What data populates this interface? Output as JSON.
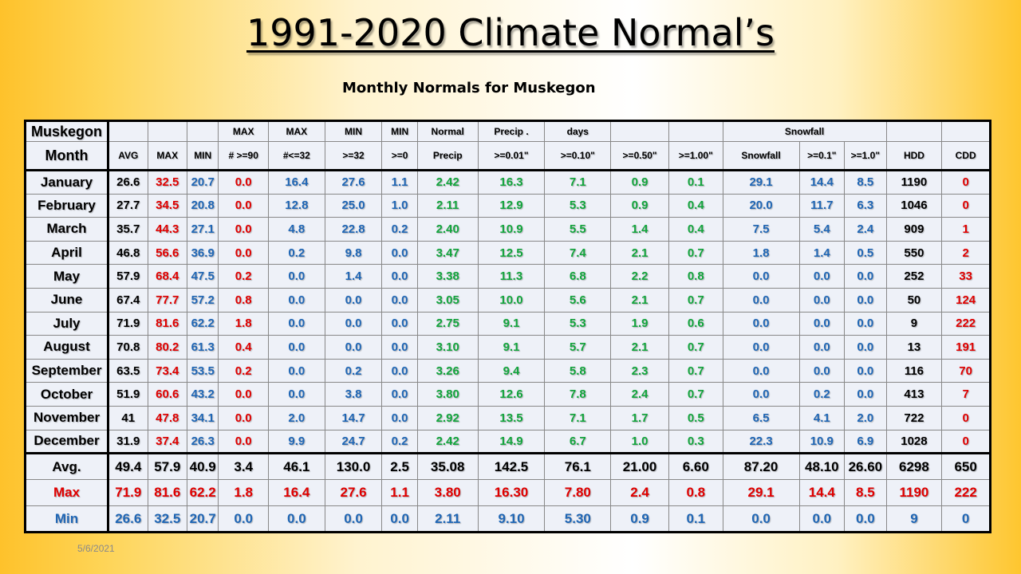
{
  "title": "1991-2020 Climate Normal’s",
  "subtitle": "Monthly Normals for Muskegon",
  "date": "5/6/2021",
  "colors": {
    "black": "#000000",
    "red": "#e00000",
    "blue": "#1f66b5",
    "green": "#13a53d"
  },
  "table": {
    "header1": [
      "Muskegon",
      "",
      "",
      "",
      "MAX",
      "MAX",
      "MIN",
      "MIN",
      "Normal",
      "Precip .",
      "days",
      "",
      "",
      "Snowfall",
      "",
      ""
    ],
    "header2": [
      "Month",
      "AVG",
      "MAX",
      "MIN",
      "# >=90",
      "#<=32",
      ">=32",
      ">=0",
      "Precip",
      ">=0.01\"",
      ">=0.10\"",
      ">=0.50\"",
      ">=1.00\"",
      "Snowfall",
      ">=0.1\"",
      ">=1.0\"",
      "HDD",
      "CDD"
    ],
    "rows": [
      [
        "January",
        "26.6",
        "32.5",
        "20.7",
        "0.0",
        "16.4",
        "27.6",
        "1.1",
        "2.42",
        "16.3",
        "7.1",
        "0.9",
        "0.1",
        "29.1",
        "14.4",
        "8.5",
        "1190",
        "0"
      ],
      [
        "February",
        "27.7",
        "34.5",
        "20.8",
        "0.0",
        "12.8",
        "25.0",
        "1.0",
        "2.11",
        "12.9",
        "5.3",
        "0.9",
        "0.4",
        "20.0",
        "11.7",
        "6.3",
        "1046",
        "0"
      ],
      [
        "March",
        "35.7",
        "44.3",
        "27.1",
        "0.0",
        "4.8",
        "22.8",
        "0.2",
        "2.40",
        "10.9",
        "5.5",
        "1.4",
        "0.4",
        "7.5",
        "5.4",
        "2.4",
        "909",
        "1"
      ],
      [
        "April",
        "46.8",
        "56.6",
        "36.9",
        "0.0",
        "0.2",
        "9.8",
        "0.0",
        "3.47",
        "12.5",
        "7.4",
        "2.1",
        "0.7",
        "1.8",
        "1.4",
        "0.5",
        "550",
        "2"
      ],
      [
        "May",
        "57.9",
        "68.4",
        "47.5",
        "0.2",
        "0.0",
        "1.4",
        "0.0",
        "3.38",
        "11.3",
        "6.8",
        "2.2",
        "0.8",
        "0.0",
        "0.0",
        "0.0",
        "252",
        "33"
      ],
      [
        "June",
        "67.4",
        "77.7",
        "57.2",
        "0.8",
        "0.0",
        "0.0",
        "0.0",
        "3.05",
        "10.0",
        "5.6",
        "2.1",
        "0.7",
        "0.0",
        "0.0",
        "0.0",
        "50",
        "124"
      ],
      [
        "July",
        "71.9",
        "81.6",
        "62.2",
        "1.8",
        "0.0",
        "0.0",
        "0.0",
        "2.75",
        "9.1",
        "5.3",
        "1.9",
        "0.6",
        "0.0",
        "0.0",
        "0.0",
        "9",
        "222"
      ],
      [
        "August",
        "70.8",
        "80.2",
        "61.3",
        "0.4",
        "0.0",
        "0.0",
        "0.0",
        "3.10",
        "9.1",
        "5.7",
        "2.1",
        "0.7",
        "0.0",
        "0.0",
        "0.0",
        "13",
        "191"
      ],
      [
        "September",
        "63.5",
        "73.4",
        "53.5",
        "0.2",
        "0.0",
        "0.2",
        "0.0",
        "3.26",
        "9.4",
        "5.8",
        "2.3",
        "0.7",
        "0.0",
        "0.0",
        "0.0",
        "116",
        "70"
      ],
      [
        "October",
        "51.9",
        "60.6",
        "43.2",
        "0.0",
        "0.0",
        "3.8",
        "0.0",
        "3.80",
        "12.6",
        "7.8",
        "2.4",
        "0.7",
        "0.0",
        "0.2",
        "0.0",
        "413",
        "7"
      ],
      [
        "November",
        "41",
        "47.8",
        "34.1",
        "0.0",
        "2.0",
        "14.7",
        "0.0",
        "2.92",
        "13.5",
        "7.1",
        "1.7",
        "0.5",
        "6.5",
        "4.1",
        "2.0",
        "722",
        "0"
      ],
      [
        "December",
        "31.9",
        "37.4",
        "26.3",
        "0.0",
        "9.9",
        "24.7",
        "0.2",
        "2.42",
        "14.9",
        "6.7",
        "1.0",
        "0.3",
        "22.3",
        "10.9",
        "6.9",
        "1028",
        "0"
      ]
    ],
    "summary": [
      [
        "Avg.",
        "49.4",
        "57.9",
        "40.9",
        "3.4",
        "46.1",
        "130.0",
        "2.5",
        "35.08",
        "142.5",
        "76.1",
        "21.00",
        "6.60",
        "87.20",
        "48.10",
        "26.60",
        "6298",
        "650"
      ],
      [
        "Max",
        "71.9",
        "81.6",
        "62.2",
        "1.8",
        "16.4",
        "27.6",
        "1.1",
        "3.80",
        "16.30",
        "7.80",
        "2.4",
        "0.8",
        "29.1",
        "14.4",
        "8.5",
        "1190",
        "222"
      ],
      [
        "Min",
        "26.6",
        "32.5",
        "20.7",
        "0.0",
        "0.0",
        "0.0",
        "0.0",
        "2.11",
        "9.10",
        "5.30",
        "0.9",
        "0.1",
        "0.0",
        "0.0",
        "0.0",
        "9",
        "0"
      ]
    ]
  }
}
